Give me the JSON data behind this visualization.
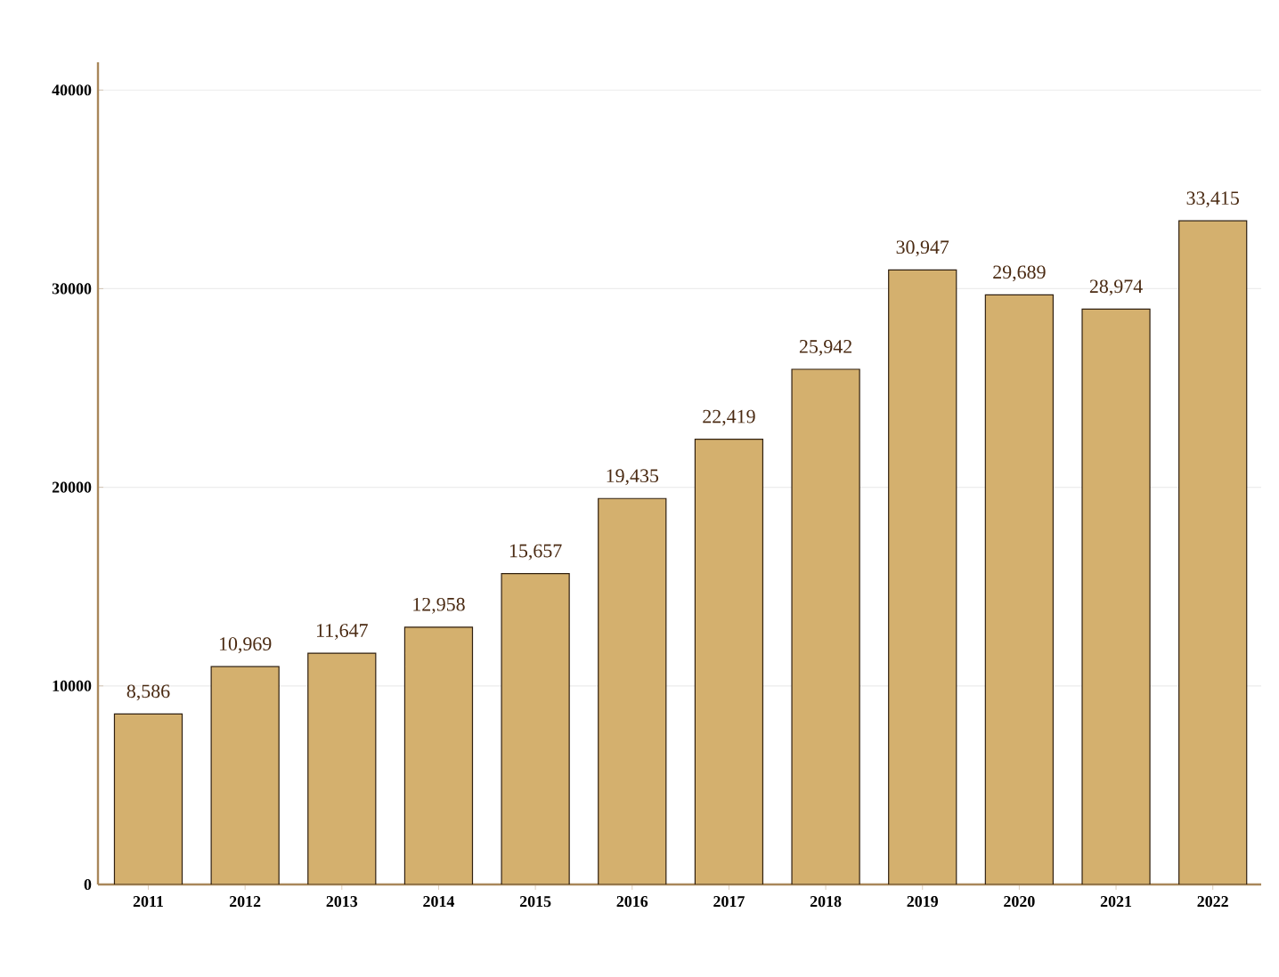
{
  "chart_data": {
    "type": "bar",
    "categories": [
      "2011",
      "2012",
      "2013",
      "2014",
      "2015",
      "2016",
      "2017",
      "2018",
      "2019",
      "2020",
      "2021",
      "2022"
    ],
    "values": [
      8586,
      10969,
      11647,
      12958,
      15657,
      19435,
      22419,
      25942,
      30947,
      29689,
      28974,
      33415
    ],
    "value_labels": [
      "8,586",
      "10,969",
      "11,647",
      "12,958",
      "15,657",
      "19,435",
      "22,419",
      "25,942",
      "30,947",
      "29,689",
      "28,974",
      "33,415"
    ],
    "color": "#d4b06e",
    "ylim": [
      0,
      41400
    ],
    "yticks": [
      0,
      10000,
      20000,
      30000,
      40000
    ],
    "grid": "y"
  }
}
